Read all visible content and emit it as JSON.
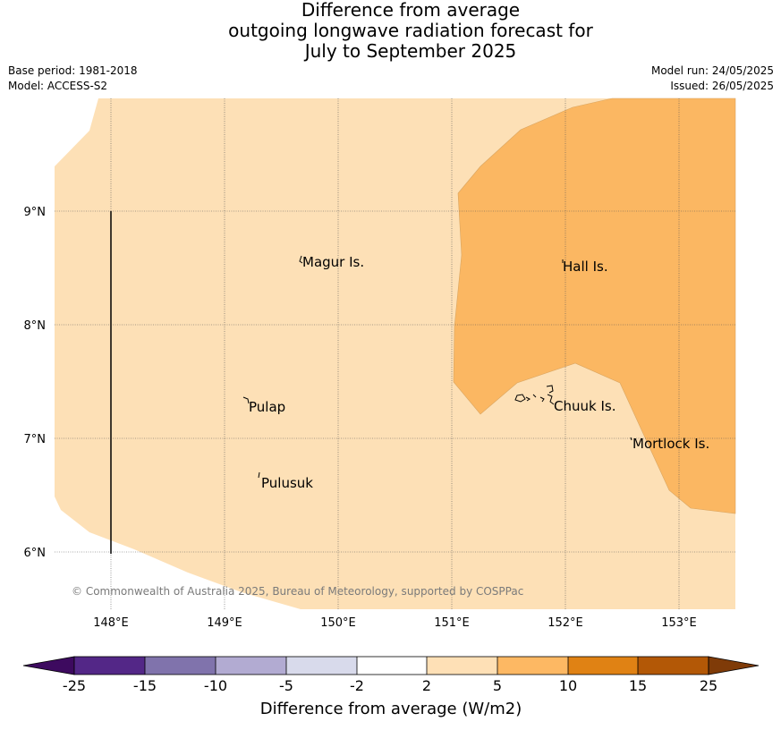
{
  "title": {
    "line1": "Difference from average",
    "line2": "outgoing longwave radiation forecast for",
    "line3": "July to September 2025"
  },
  "meta": {
    "base_period": "Base period: 1981-2018",
    "model": "Model: ACCESS-S2",
    "model_run": "Model run: 24/05/2025",
    "issued": "Issued: 26/05/2025"
  },
  "map": {
    "lat_labels": [
      "9°N",
      "8°N",
      "7°N",
      "6°N"
    ],
    "lon_labels": [
      "148°E",
      "149°E",
      "150°E",
      "151°E",
      "152°E",
      "153°E"
    ],
    "places": [
      "Magur Is.",
      "Hall Is.",
      "Pulap",
      "Chuuk Is.",
      "Mortlock Is.",
      "Pulusuk"
    ],
    "copyright": "© Commonwealth of Australia 2025, Bureau of Meteorology, supported by COSPPac",
    "colors": {
      "band_2_to_5": "#fde0b6",
      "band_5_to_10": "#fbb762",
      "grid": "#555555"
    }
  },
  "legend": {
    "title": "Difference from average (W/m2)",
    "ticks": [
      "-25",
      "-15",
      "-10",
      "-5",
      "-2",
      "2",
      "5",
      "10",
      "15",
      "25"
    ],
    "colors": [
      "#3d0a5f",
      "#532787",
      "#8073ac",
      "#b2abd2",
      "#d8daeb",
      "#ffffff",
      "#fee0b6",
      "#fdb863",
      "#e08214",
      "#b35806",
      "#7f3b08"
    ]
  }
}
